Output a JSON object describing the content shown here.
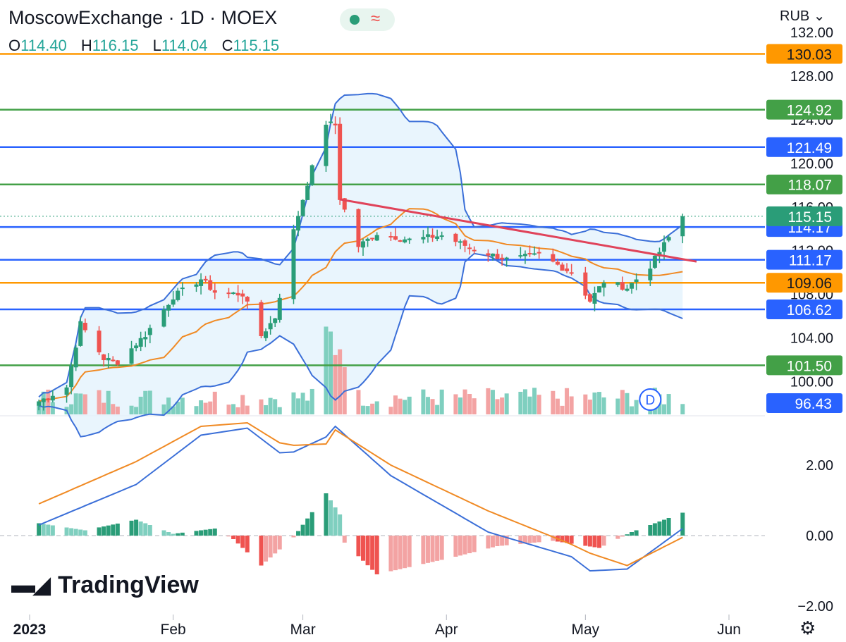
{
  "header": {
    "title": "MoscowExchange · 1D · MOEX",
    "currency": "RUB",
    "ohlc": [
      {
        "key": "O",
        "value": "114.40"
      },
      {
        "key": "H",
        "value": "116.15"
      },
      {
        "key": "L",
        "value": "114.04"
      },
      {
        "key": "C",
        "value": "115.15"
      }
    ]
  },
  "logo": "TradingView",
  "colors": {
    "up": "#2a9d78",
    "down": "#ef5350",
    "upVol": "#7fcfbf",
    "downVol": "#f3a3a3",
    "blue": "#2962ff",
    "green": "#43a047",
    "orange": "#ff9800",
    "band": "#3b6fd8",
    "bandFill": "#e3f2fd",
    "trend": "#e0435a",
    "ma": "#f08a24",
    "macd": "#3b6fd8",
    "signal": "#f08a24"
  },
  "chart_data": [
    {
      "type": "candlestick",
      "ylim": [
        97,
        132
      ],
      "y_ticks": [
        "132.00",
        "128.00",
        "124.00",
        "120.00",
        "116.00",
        "112.00",
        "108.00",
        "104.00",
        "100.00"
      ],
      "x_ticks": [
        "2023",
        "Feb",
        "Mar",
        "Apr",
        "May",
        "Jun"
      ],
      "x_tick_dates": [
        "2023-01-01",
        "2023-02-01",
        "2023-03-01",
        "2023-04-01",
        "2023-05-01",
        "2023-06-01"
      ],
      "price_lines": [
        {
          "value": 130.03,
          "label": "130.03",
          "color": "orange"
        },
        {
          "value": 124.92,
          "label": "124.92",
          "color": "green"
        },
        {
          "value": 121.49,
          "label": "121.49",
          "color": "blue"
        },
        {
          "value": 118.07,
          "label": "118.07",
          "color": "green"
        },
        {
          "value": 114.17,
          "label": "114.17",
          "color": "blue"
        },
        {
          "value": 111.17,
          "label": "111.17",
          "color": "blue"
        },
        {
          "value": 109.06,
          "label": "109.06",
          "color": "orange"
        },
        {
          "value": 106.62,
          "label": "106.62",
          "color": "blue"
        },
        {
          "value": 101.5,
          "label": "101.50",
          "color": "green"
        }
      ],
      "last_price": {
        "value": 115.15,
        "label": "115.15"
      },
      "volume_label": "96.43",
      "marker": "D",
      "trendline": [
        {
          "date": "2023-03-09",
          "value": 116.7
        },
        {
          "date": "2023-05-25",
          "value": 111.0
        }
      ],
      "ohlc_anchors": [
        {
          "date": "2023-01-03",
          "close": 98.2
        },
        {
          "date": "2023-01-09",
          "close": 99.5
        },
        {
          "date": "2023-01-12",
          "close": 105.3
        },
        {
          "date": "2023-01-17",
          "close": 102.1
        },
        {
          "date": "2023-01-20",
          "close": 101.8
        },
        {
          "date": "2023-01-26",
          "close": 104.3
        },
        {
          "date": "2023-02-01",
          "close": 107.8
        },
        {
          "date": "2023-02-07",
          "close": 109.4
        },
        {
          "date": "2023-02-10",
          "close": 108.2
        },
        {
          "date": "2023-02-16",
          "close": 108.0
        },
        {
          "date": "2023-02-20",
          "close": 104.2
        },
        {
          "date": "2023-02-23",
          "close": 105.9
        },
        {
          "date": "2023-02-27",
          "close": 113.8
        },
        {
          "date": "2023-03-02",
          "close": 118.2
        },
        {
          "date": "2023-03-06",
          "close": 123.7
        },
        {
          "date": "2023-03-08",
          "close": 123.5
        },
        {
          "date": "2023-03-09",
          "close": 116.8
        },
        {
          "date": "2023-03-13",
          "close": 112.4
        },
        {
          "date": "2023-03-17",
          "close": 113.6
        },
        {
          "date": "2023-03-24",
          "close": 113.0
        },
        {
          "date": "2023-03-31",
          "close": 113.4
        },
        {
          "date": "2023-04-07",
          "close": 112.1
        },
        {
          "date": "2023-04-14",
          "close": 111.2
        },
        {
          "date": "2023-04-21",
          "close": 111.6
        },
        {
          "date": "2023-04-28",
          "close": 110.0
        },
        {
          "date": "2023-05-02",
          "close": 107.4
        },
        {
          "date": "2023-05-05",
          "close": 109.2
        },
        {
          "date": "2023-05-10",
          "close": 108.6
        },
        {
          "date": "2023-05-15",
          "close": 110.6
        },
        {
          "date": "2023-05-22",
          "close": 115.15
        }
      ]
    },
    {
      "type": "line",
      "ylim": [
        -2.2,
        3.2
      ],
      "y_ticks": [
        "2.00",
        "0.00",
        "−2.00"
      ],
      "y_tick_values": [
        2,
        0,
        -2
      ],
      "series": [
        {
          "key": "macd",
          "points": [
            {
              "date": "2023-01-03",
              "value": 0.3
            },
            {
              "date": "2023-01-24",
              "value": 1.45
            },
            {
              "date": "2023-02-07",
              "value": 2.85
            },
            {
              "date": "2023-02-17",
              "value": 3.05
            },
            {
              "date": "2023-02-25",
              "value": 2.25
            },
            {
              "date": "2023-03-06",
              "value": 2.8
            },
            {
              "date": "2023-03-08",
              "value": 3.1
            },
            {
              "date": "2023-03-20",
              "value": 1.7
            },
            {
              "date": "2023-04-10",
              "value": 0.1
            },
            {
              "date": "2023-04-28",
              "value": -0.6
            },
            {
              "date": "2023-05-02",
              "value": -1.0
            },
            {
              "date": "2023-05-10",
              "value": -0.95
            },
            {
              "date": "2023-05-22",
              "value": 0.2
            }
          ]
        },
        {
          "key": "signal",
          "points": [
            {
              "date": "2023-01-03",
              "value": 0.9
            },
            {
              "date": "2023-01-24",
              "value": 2.1
            },
            {
              "date": "2023-02-07",
              "value": 3.1
            },
            {
              "date": "2023-02-17",
              "value": 3.2
            },
            {
              "date": "2023-02-25",
              "value": 2.55
            },
            {
              "date": "2023-03-06",
              "value": 2.6
            },
            {
              "date": "2023-03-08",
              "value": 3.0
            },
            {
              "date": "2023-03-20",
              "value": 2.0
            },
            {
              "date": "2023-04-10",
              "value": 0.7
            },
            {
              "date": "2023-04-28",
              "value": -0.25
            },
            {
              "date": "2023-05-02",
              "value": -0.5
            },
            {
              "date": "2023-05-10",
              "value": -0.85
            },
            {
              "date": "2023-05-22",
              "value": -0.05
            }
          ]
        }
      ],
      "histogram": [
        {
          "date": "2023-01-03",
          "value": 0.35
        },
        {
          "date": "2023-01-13",
          "value": 0.15
        },
        {
          "date": "2023-01-24",
          "value": 0.45
        },
        {
          "date": "2023-02-01",
          "value": 0.05
        },
        {
          "date": "2023-02-10",
          "value": 0.2
        },
        {
          "date": "2023-02-14",
          "value": -0.1
        },
        {
          "date": "2023-02-20",
          "value": -0.85
        },
        {
          "date": "2023-02-27",
          "value": -0.05
        },
        {
          "date": "2023-03-06",
          "value": 1.2
        },
        {
          "date": "2023-03-09",
          "value": 0.6
        },
        {
          "date": "2023-03-10",
          "value": -0.2
        },
        {
          "date": "2023-03-17",
          "value": -1.1
        },
        {
          "date": "2023-04-03",
          "value": -0.6
        },
        {
          "date": "2023-04-12",
          "value": -0.3
        },
        {
          "date": "2023-04-24",
          "value": -0.15
        },
        {
          "date": "2023-05-04",
          "value": -0.35
        },
        {
          "date": "2023-05-11",
          "value": 0.1
        },
        {
          "date": "2023-05-22",
          "value": 0.65
        }
      ]
    }
  ]
}
